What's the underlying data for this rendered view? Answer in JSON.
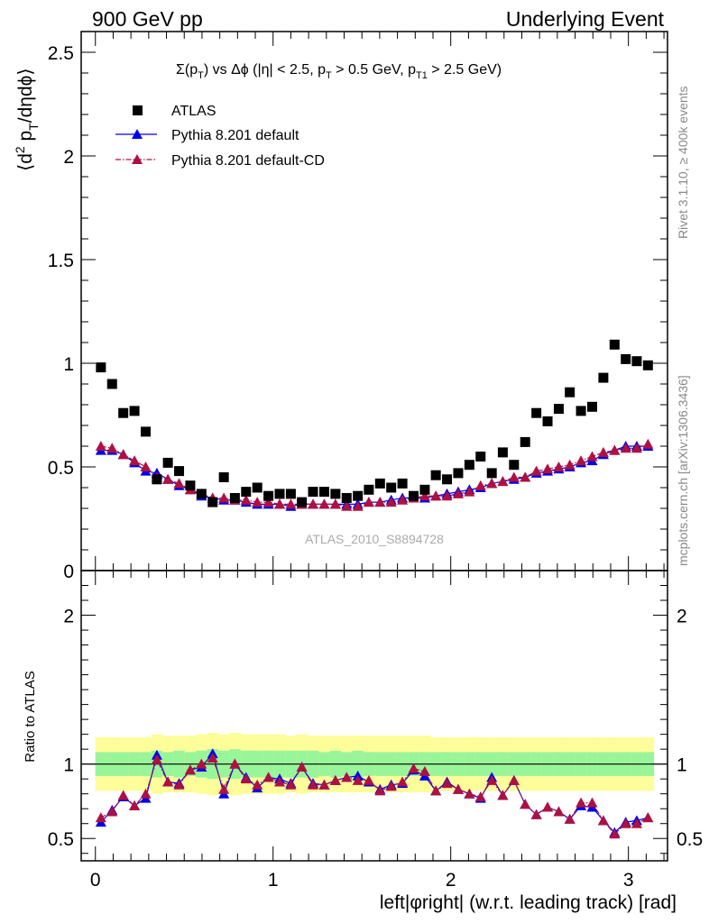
{
  "header": {
    "left": "900 GeV pp",
    "right": "Underlying Event"
  },
  "side_labels": {
    "rivet": "Rivet 3.1.10, ≥ 400k events",
    "mcplots": "mcplots.cern.ch [arXiv:1306.3436]"
  },
  "watermark": "ATLAS_2010_S8894728",
  "colors": {
    "data": "#000000",
    "pythia_default": "#0000ee",
    "pythia_cd": "#b01040",
    "band_inner": "#99f599",
    "band_outer": "#fdfd99"
  },
  "chart_data": [
    {
      "type": "scatter",
      "panel": "main",
      "title": "Σ(p_T) vs Δφ (|η| < 2.5, p_T > 0.5 GeV, p_T1 > 2.5 GeV)",
      "ylabel": "⟨d² p_T/dηdφ⟩",
      "xlim": [
        -0.08,
        3.22
      ],
      "ylim": [
        0,
        2.6
      ],
      "yticks": [
        0.5,
        1,
        1.5,
        2,
        2.5
      ],
      "ytick_labels": [
        "0.5",
        "1",
        "1.5",
        "2",
        "2.5"
      ],
      "legend_position": "top-left",
      "legend": [
        "ATLAS",
        "Pythia 8.201 default",
        "Pythia 8.201 default-CD"
      ],
      "x": [
        0.031,
        0.094,
        0.157,
        0.22,
        0.283,
        0.346,
        0.408,
        0.471,
        0.534,
        0.597,
        0.66,
        0.723,
        0.785,
        0.848,
        0.911,
        0.974,
        1.037,
        1.1,
        1.162,
        1.225,
        1.288,
        1.351,
        1.414,
        1.477,
        1.539,
        1.602,
        1.665,
        1.728,
        1.791,
        1.854,
        1.916,
        1.979,
        2.042,
        2.105,
        2.168,
        2.231,
        2.293,
        2.356,
        2.419,
        2.482,
        2.545,
        2.608,
        2.67,
        2.733,
        2.796,
        2.859,
        2.922,
        2.985,
        3.047,
        3.11
      ],
      "series": [
        {
          "name": "ATLAS",
          "values": [
            0.98,
            0.9,
            0.76,
            0.77,
            0.67,
            0.44,
            0.52,
            0.48,
            0.41,
            0.37,
            0.33,
            0.45,
            0.35,
            0.38,
            0.4,
            0.36,
            0.37,
            0.37,
            0.33,
            0.38,
            0.38,
            0.37,
            0.35,
            0.36,
            0.39,
            0.42,
            0.4,
            0.42,
            0.36,
            0.39,
            0.46,
            0.44,
            0.47,
            0.51,
            0.55,
            0.47,
            0.57,
            0.51,
            0.62,
            0.76,
            0.72,
            0.78,
            0.86,
            0.77,
            0.79,
            0.93,
            1.09,
            1.02,
            1.01,
            0.99
          ]
        },
        {
          "name": "Pythia 8.201 default",
          "values": [
            0.58,
            0.58,
            0.56,
            0.52,
            0.48,
            0.47,
            0.44,
            0.41,
            0.39,
            0.36,
            0.35,
            0.34,
            0.34,
            0.33,
            0.32,
            0.32,
            0.32,
            0.31,
            0.32,
            0.32,
            0.32,
            0.32,
            0.32,
            0.32,
            0.33,
            0.33,
            0.34,
            0.35,
            0.35,
            0.35,
            0.36,
            0.37,
            0.38,
            0.39,
            0.4,
            0.42,
            0.43,
            0.44,
            0.45,
            0.47,
            0.48,
            0.49,
            0.5,
            0.52,
            0.53,
            0.56,
            0.58,
            0.6,
            0.6,
            0.6
          ]
        },
        {
          "name": "Pythia 8.201 default-CD",
          "values": [
            0.6,
            0.59,
            0.56,
            0.53,
            0.5,
            0.45,
            0.44,
            0.42,
            0.39,
            0.37,
            0.35,
            0.35,
            0.34,
            0.34,
            0.33,
            0.33,
            0.32,
            0.32,
            0.32,
            0.32,
            0.32,
            0.32,
            0.31,
            0.31,
            0.33,
            0.33,
            0.33,
            0.34,
            0.35,
            0.36,
            0.36,
            0.36,
            0.37,
            0.38,
            0.41,
            0.42,
            0.43,
            0.45,
            0.45,
            0.48,
            0.49,
            0.5,
            0.51,
            0.53,
            0.55,
            0.57,
            0.58,
            0.59,
            0.59,
            0.61
          ]
        }
      ]
    },
    {
      "type": "line",
      "panel": "ratio",
      "xlabel": "left|φright| (w.r.t. leading track) [rad]",
      "ylabel": "Ratio to ATLAS",
      "xlim": [
        -0.08,
        3.22
      ],
      "ylim": [
        0.35,
        2.3
      ],
      "xticks": [
        0,
        1,
        2,
        3
      ],
      "xtick_labels": [
        "0",
        "1",
        "2",
        "3"
      ],
      "yticks": [
        0.5,
        1,
        2
      ],
      "ytick_labels": [
        "0.5",
        "1",
        "2"
      ],
      "reference_line": 1,
      "x": [
        0.031,
        0.094,
        0.157,
        0.22,
        0.283,
        0.346,
        0.408,
        0.471,
        0.534,
        0.597,
        0.66,
        0.723,
        0.785,
        0.848,
        0.911,
        0.974,
        1.037,
        1.1,
        1.162,
        1.225,
        1.288,
        1.351,
        1.414,
        1.477,
        1.539,
        1.602,
        1.665,
        1.728,
        1.791,
        1.854,
        1.916,
        1.979,
        2.042,
        2.105,
        2.168,
        2.231,
        2.293,
        2.356,
        2.419,
        2.482,
        2.545,
        2.608,
        2.67,
        2.733,
        2.796,
        2.859,
        2.922,
        2.985,
        3.047,
        3.11
      ],
      "band_inner": {
        "lower": [
          0.92,
          0.92,
          0.92,
          0.92,
          0.92,
          0.91,
          0.92,
          0.91,
          0.92,
          0.91,
          0.9,
          0.91,
          0.9,
          0.91,
          0.91,
          0.91,
          0.91,
          0.91,
          0.91,
          0.91,
          0.92,
          0.91,
          0.92,
          0.91,
          0.92,
          0.92,
          0.92,
          0.92,
          0.92,
          0.92,
          0.92,
          0.92,
          0.92,
          0.92,
          0.92,
          0.92,
          0.92,
          0.92,
          0.92,
          0.92,
          0.92,
          0.92,
          0.92,
          0.92,
          0.92,
          0.92,
          0.92,
          0.92,
          0.92,
          0.92
        ],
        "upper": [
          1.08,
          1.08,
          1.08,
          1.08,
          1.08,
          1.09,
          1.08,
          1.09,
          1.08,
          1.09,
          1.1,
          1.09,
          1.1,
          1.09,
          1.09,
          1.09,
          1.09,
          1.09,
          1.09,
          1.09,
          1.08,
          1.09,
          1.08,
          1.09,
          1.08,
          1.08,
          1.08,
          1.08,
          1.08,
          1.08,
          1.08,
          1.08,
          1.08,
          1.08,
          1.08,
          1.08,
          1.08,
          1.08,
          1.08,
          1.08,
          1.08,
          1.08,
          1.08,
          1.08,
          1.08,
          1.08,
          1.08,
          1.08,
          1.08,
          1.08
        ]
      },
      "band_outer": {
        "lower": [
          0.82,
          0.82,
          0.82,
          0.82,
          0.82,
          0.8,
          0.81,
          0.81,
          0.81,
          0.8,
          0.79,
          0.8,
          0.79,
          0.8,
          0.8,
          0.8,
          0.8,
          0.81,
          0.8,
          0.81,
          0.81,
          0.81,
          0.81,
          0.81,
          0.81,
          0.81,
          0.81,
          0.81,
          0.81,
          0.81,
          0.82,
          0.82,
          0.82,
          0.82,
          0.82,
          0.82,
          0.82,
          0.82,
          0.82,
          0.82,
          0.82,
          0.82,
          0.82,
          0.82,
          0.82,
          0.82,
          0.82,
          0.82,
          0.82,
          0.82
        ],
        "upper": [
          1.18,
          1.18,
          1.18,
          1.18,
          1.18,
          1.2,
          1.19,
          1.19,
          1.19,
          1.2,
          1.21,
          1.2,
          1.21,
          1.2,
          1.2,
          1.2,
          1.2,
          1.19,
          1.2,
          1.19,
          1.19,
          1.19,
          1.19,
          1.19,
          1.19,
          1.19,
          1.19,
          1.19,
          1.19,
          1.19,
          1.18,
          1.18,
          1.18,
          1.18,
          1.18,
          1.18,
          1.18,
          1.18,
          1.18,
          1.18,
          1.18,
          1.18,
          1.18,
          1.18,
          1.18,
          1.18,
          1.18,
          1.18,
          1.18,
          1.18
        ]
      },
      "series": [
        {
          "name": "Pythia 8.201 default",
          "values": [
            0.61,
            0.69,
            0.78,
            0.72,
            0.77,
            1.06,
            0.88,
            0.87,
            0.96,
            0.98,
            1.07,
            0.8,
            1.0,
            0.91,
            0.84,
            0.91,
            0.9,
            0.87,
            0.98,
            0.87,
            0.86,
            0.89,
            0.91,
            0.92,
            0.88,
            0.83,
            0.86,
            0.87,
            0.96,
            0.92,
            0.82,
            0.88,
            0.83,
            0.8,
            0.77,
            0.91,
            0.79,
            0.89,
            0.73,
            0.66,
            0.71,
            0.68,
            0.63,
            0.72,
            0.71,
            0.62,
            0.54,
            0.61,
            0.62,
            0.64
          ]
        },
        {
          "name": "Pythia 8.201 default-CD",
          "values": [
            0.64,
            0.68,
            0.79,
            0.72,
            0.8,
            1.03,
            0.88,
            0.86,
            0.96,
            1.0,
            1.04,
            0.83,
            1.0,
            0.9,
            0.86,
            0.91,
            0.88,
            0.86,
            0.98,
            0.86,
            0.86,
            0.89,
            0.91,
            0.89,
            0.89,
            0.82,
            0.85,
            0.88,
            0.97,
            0.95,
            0.82,
            0.87,
            0.83,
            0.8,
            0.78,
            0.89,
            0.79,
            0.89,
            0.73,
            0.66,
            0.71,
            0.68,
            0.63,
            0.74,
            0.74,
            0.62,
            0.53,
            0.6,
            0.6,
            0.64
          ]
        }
      ]
    }
  ]
}
